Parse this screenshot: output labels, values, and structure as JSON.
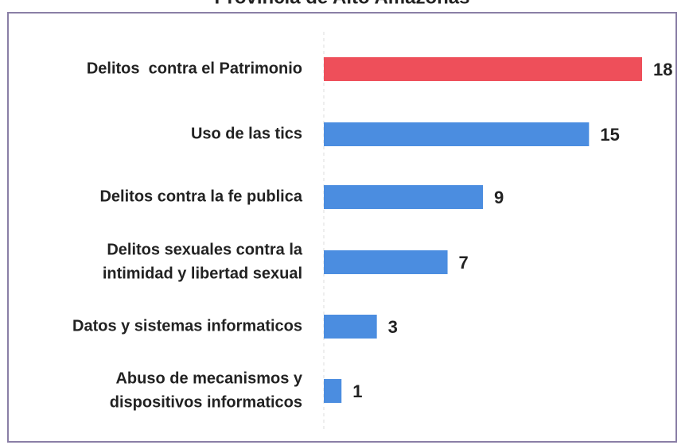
{
  "chart_data": {
    "type": "hbar",
    "title": "Provincia de Alto Amazonas",
    "categories": [
      [
        "Delitos  contra el Patrimonio"
      ],
      [
        "Uso de las tics"
      ],
      [
        "Delitos contra la fe publica"
      ],
      [
        "Delitos sexuales contra la",
        "intimidad y libertad sexual"
      ],
      [
        "Datos y sistemas informaticos"
      ],
      [
        "Abuso de mecanismos y",
        "dispositivos informaticos"
      ]
    ],
    "values": [
      18,
      15,
      9,
      7,
      3,
      1
    ],
    "colors": [
      "#ee4f5a",
      "#4b8de0",
      "#4b8de0",
      "#4b8de0",
      "#4b8de0",
      "#4b8de0"
    ],
    "xlim": [
      0,
      18
    ]
  }
}
